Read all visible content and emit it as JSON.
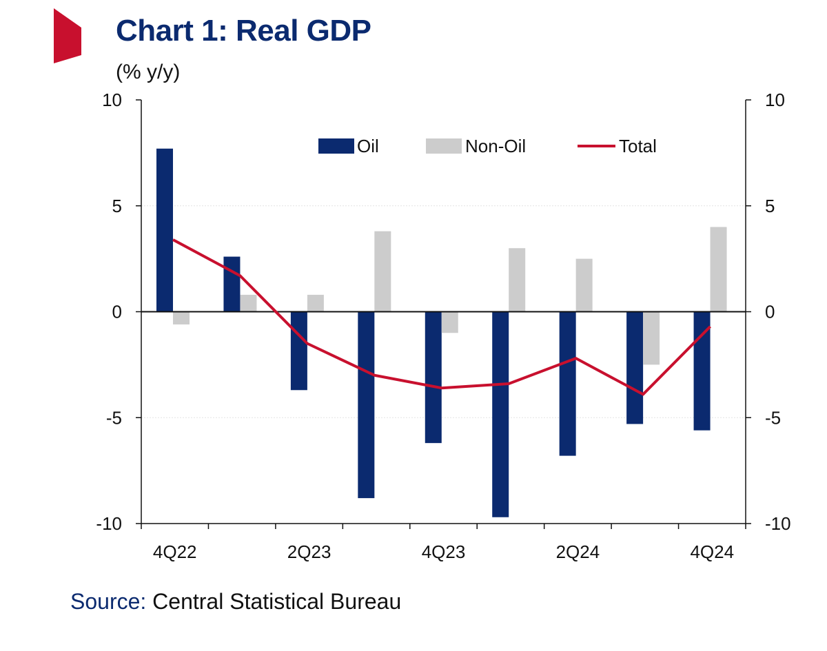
{
  "header": {
    "title": "Chart 1: Real GDP",
    "unit": "(% y/y)"
  },
  "footer": {
    "source_label": "Source:",
    "source_text": " Central Statistical Bureau"
  },
  "colors": {
    "oil": "#0b2a6f",
    "non_oil": "#cccccc",
    "total": "#c8102e",
    "accent": "#c8102e"
  },
  "chart_data": {
    "type": "bar",
    "title": "Chart 1: Real GDP",
    "ylabel": "(% y/y)",
    "xlabel": "",
    "ylim": [
      -10,
      10
    ],
    "y_ticks": [
      10,
      5,
      0,
      -5,
      -10
    ],
    "categories": [
      "4Q22",
      "1Q23",
      "2Q23",
      "3Q23",
      "4Q23",
      "1Q24",
      "2Q24",
      "3Q24",
      "4Q24"
    ],
    "x_tick_labels": [
      "4Q22",
      "",
      "2Q23",
      "",
      "4Q23",
      "",
      "2Q24",
      "",
      "4Q24"
    ],
    "series": [
      {
        "name": "Oil",
        "type": "bar",
        "values": [
          7.7,
          2.6,
          -3.7,
          -8.8,
          -6.2,
          -9.7,
          -6.8,
          -5.3,
          -5.6
        ]
      },
      {
        "name": "Non-Oil",
        "type": "bar",
        "values": [
          -0.6,
          0.8,
          0.8,
          3.8,
          -1.0,
          3.0,
          2.5,
          -2.5,
          4.0
        ]
      },
      {
        "name": "Total",
        "type": "line",
        "values": [
          3.4,
          1.7,
          -1.5,
          -3.0,
          -3.6,
          -3.4,
          -2.2,
          -3.9,
          -0.7
        ]
      }
    ],
    "legend": [
      "Oil",
      "Non-Oil",
      "Total"
    ],
    "legend_position": "top-right",
    "grid": true,
    "secondary_y_axis": true
  }
}
